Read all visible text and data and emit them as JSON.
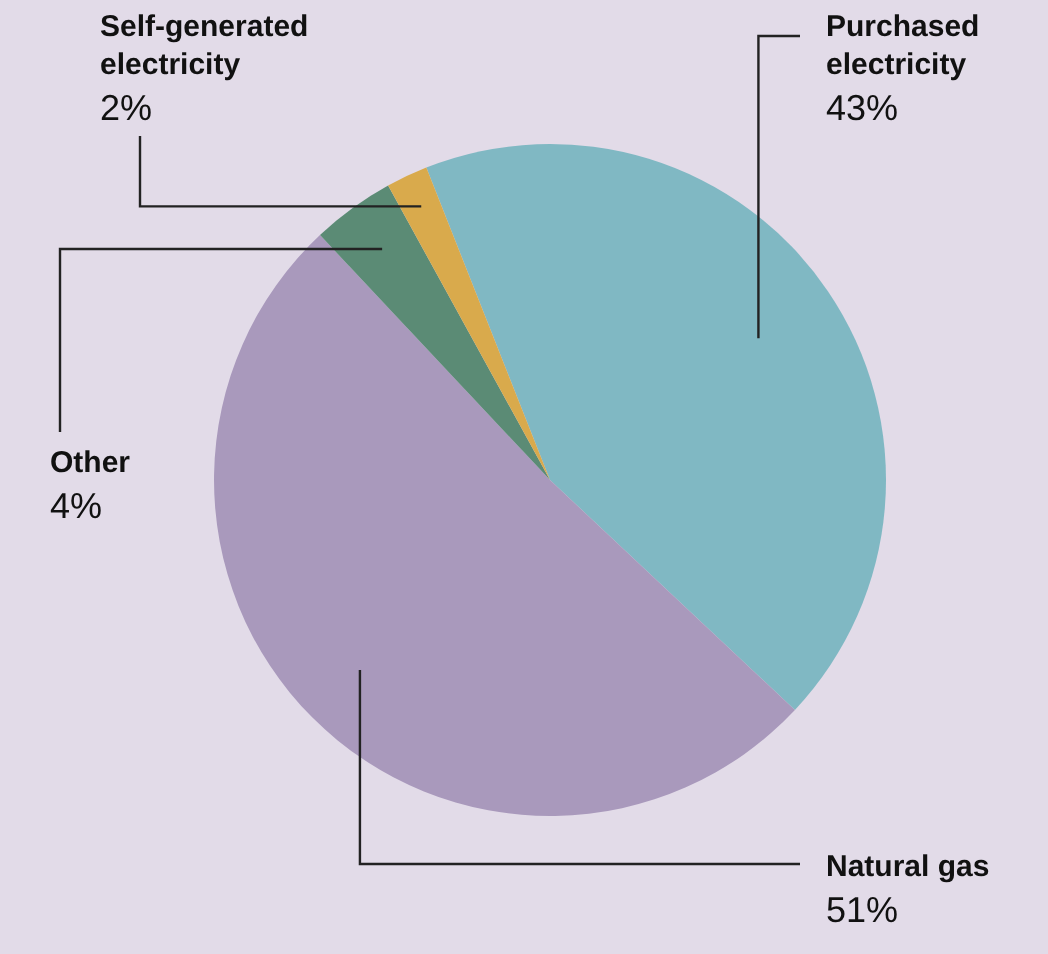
{
  "chart_data": {
    "type": "pie",
    "categories": [
      "Purchased electricity",
      "Natural gas",
      "Other",
      "Self-generated electricity"
    ],
    "values": [
      43,
      51,
      4,
      2
    ],
    "colors": [
      "#80b8c3",
      "#a999bc",
      "#5b8b75",
      "#d9aa4c"
    ],
    "value_labels": [
      "43%",
      "51%",
      "4%",
      "2%"
    ]
  }
}
